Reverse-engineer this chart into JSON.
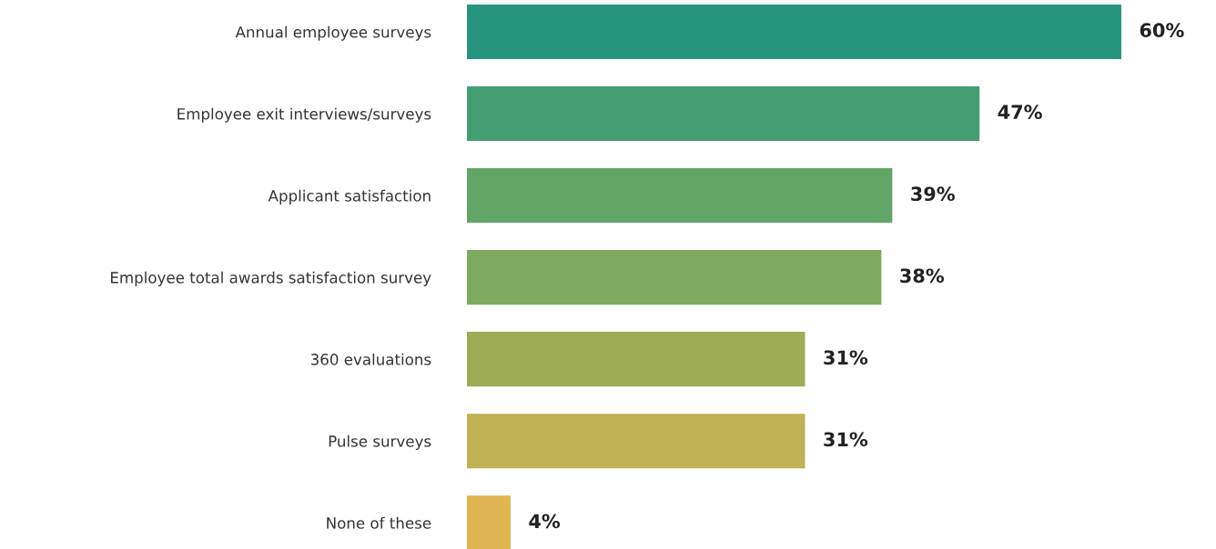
{
  "chart_data": {
    "type": "bar",
    "orientation": "horizontal",
    "categories": [
      "Annual employee surveys",
      "Employee exit interviews/surveys",
      "Applicant satisfaction",
      "Employee total awards satisfaction survey",
      "360 evaluations",
      "Pulse surveys",
      "None of these"
    ],
    "values": [
      60,
      47,
      39,
      38,
      31,
      31,
      4
    ],
    "colors": [
      "#27957c",
      "#459e72",
      "#62a567",
      "#7daa5e",
      "#9ead55",
      "#bfb052",
      "#dfb552"
    ],
    "value_labels": [
      "60%",
      "47%",
      "39%",
      "38%",
      "31%",
      "31%",
      "4%"
    ],
    "tick_labels": "y",
    "grid": false,
    "legend": false
  }
}
